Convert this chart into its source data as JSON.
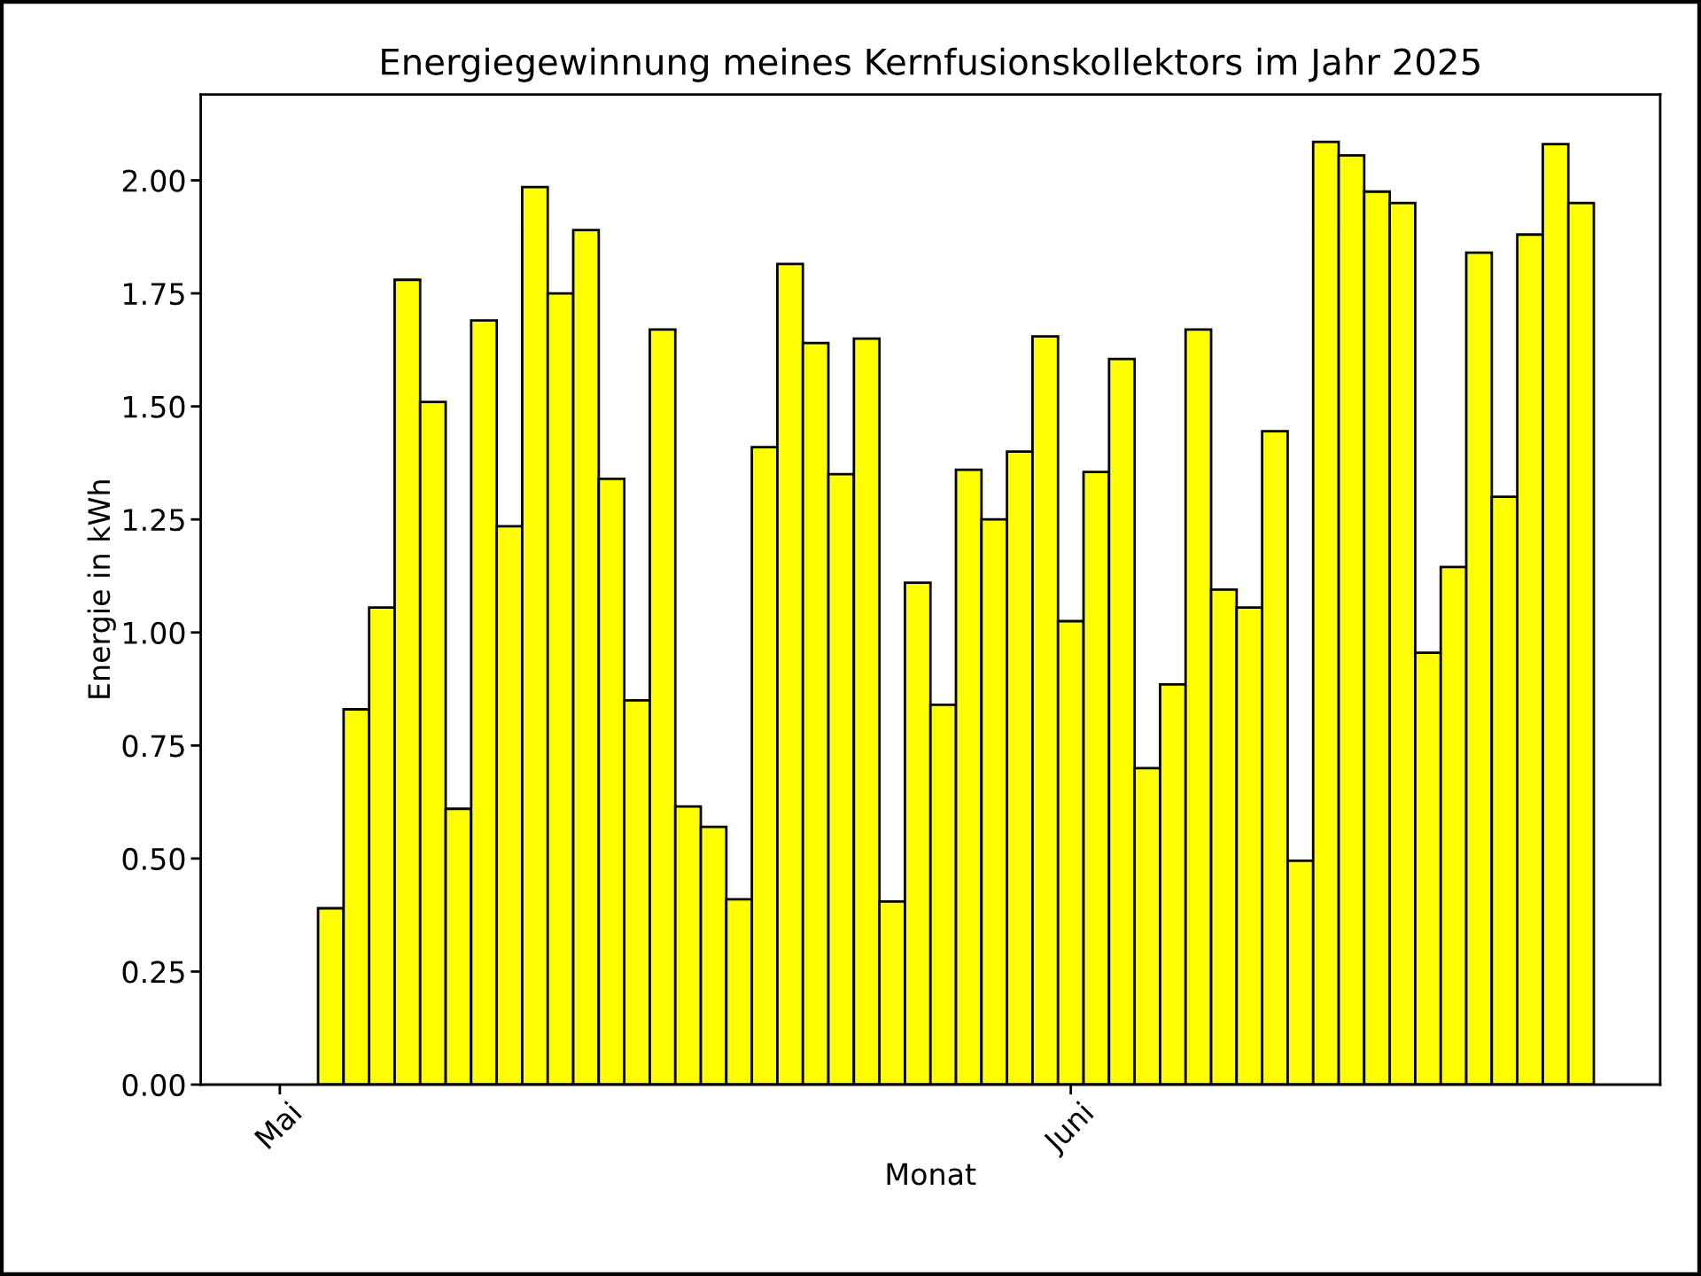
{
  "chart_data": {
    "type": "bar",
    "title": "Energiegewinnung meines Kernfusionskollektors im Jahr 2025",
    "xlabel": "Monat",
    "ylabel": "Energie in kWh",
    "categories": [
      "Mai",
      null,
      null,
      null,
      null,
      null,
      null,
      null,
      null,
      null,
      null,
      null,
      null,
      null,
      null,
      null,
      null,
      null,
      null,
      null,
      null,
      null,
      null,
      null,
      null,
      null,
      null,
      null,
      null,
      null,
      null,
      "Juni",
      null,
      null,
      null,
      null,
      null,
      null,
      null,
      null,
      null,
      null,
      null,
      null,
      null,
      null,
      null,
      null,
      null,
      null,
      null,
      null
    ],
    "values": [
      null,
      null,
      0.39,
      0.83,
      1.055,
      1.78,
      1.51,
      0.61,
      1.69,
      1.235,
      1.985,
      1.75,
      1.89,
      1.34,
      0.85,
      1.67,
      0.615,
      0.57,
      0.41,
      1.41,
      1.815,
      1.64,
      1.35,
      1.65,
      0.405,
      1.11,
      0.84,
      1.36,
      1.25,
      1.4,
      1.655,
      1.025,
      1.355,
      1.605,
      0.7,
      0.885,
      1.67,
      1.095,
      1.055,
      1.445,
      0.495,
      2.085,
      2.055,
      1.975,
      1.95,
      0.955,
      1.145,
      1.84,
      1.3,
      1.88,
      2.08,
      1.95
    ],
    "color": "#ffff00",
    "ylim": [
      0,
      2.19
    ],
    "yticks": [
      {
        "value": 0,
        "label": "0.00"
      },
      {
        "value": 0.25,
        "label": "0.25"
      },
      {
        "value": 0.5,
        "label": "0.50"
      },
      {
        "value": 0.75,
        "label": "0.75"
      },
      {
        "value": 1.0,
        "label": "1.00"
      },
      {
        "value": 1.25,
        "label": "1.25"
      },
      {
        "value": 1.5,
        "label": "1.50"
      },
      {
        "value": 1.75,
        "label": "1.75"
      },
      {
        "value": 2.0,
        "label": "2.00"
      }
    ],
    "grid": false
  }
}
